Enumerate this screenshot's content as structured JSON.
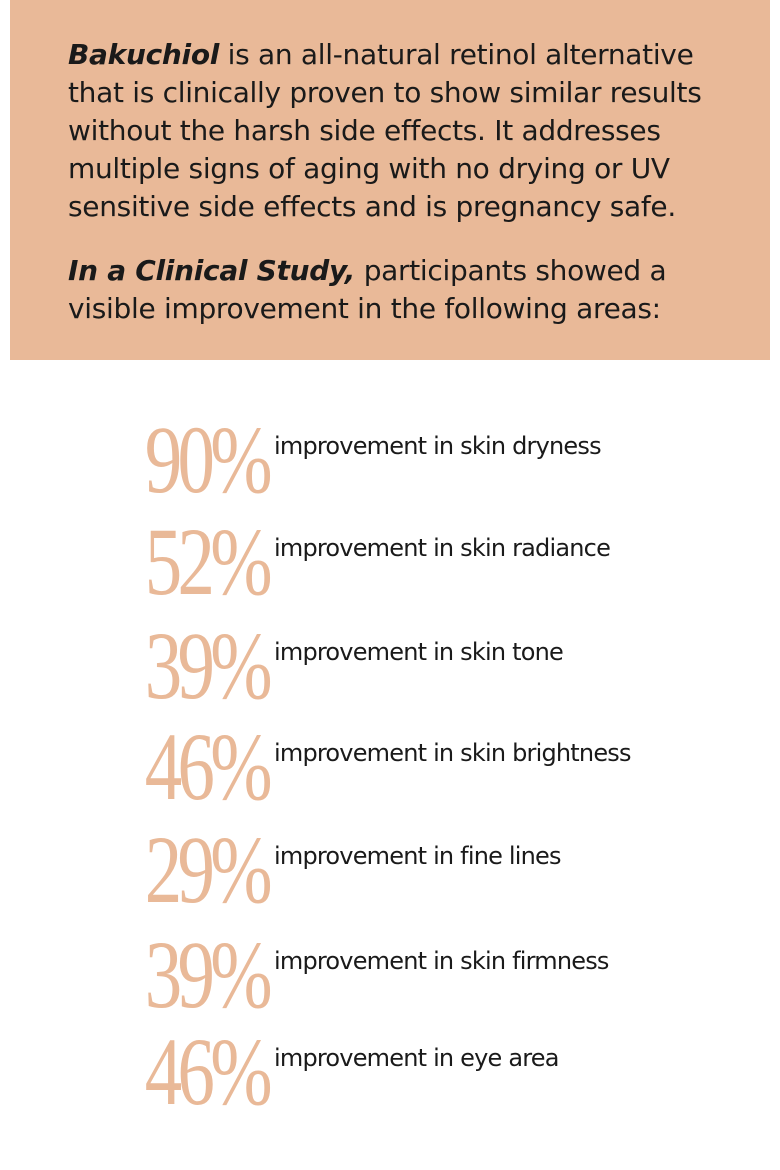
{
  "intro": {
    "lead": "Bakuchiol",
    "text": " is an all-natural retinol alternative that is clinically proven to show similar results without the harsh side effects. It addresses multiple signs of aging with no drying or UV sensitive side effects and is pregnancy safe."
  },
  "study": {
    "lead": "In a Clinical Study,",
    "text": " participants showed a visible improvement in the following areas:"
  },
  "stats": [
    {
      "percent": "90%",
      "label": "improvement in skin dryness"
    },
    {
      "percent": "52%",
      "label": "improvement in skin radiance"
    },
    {
      "percent": "39%",
      "label": "improvement in skin tone"
    },
    {
      "percent": "46%",
      "label": "improvement in skin brightness"
    },
    {
      "percent": "29%",
      "label": "improvement in fine lines"
    },
    {
      "percent": "39%",
      "label": "improvement in skin firmness"
    },
    {
      "percent": "46%",
      "label": "improvement in eye area"
    }
  ]
}
